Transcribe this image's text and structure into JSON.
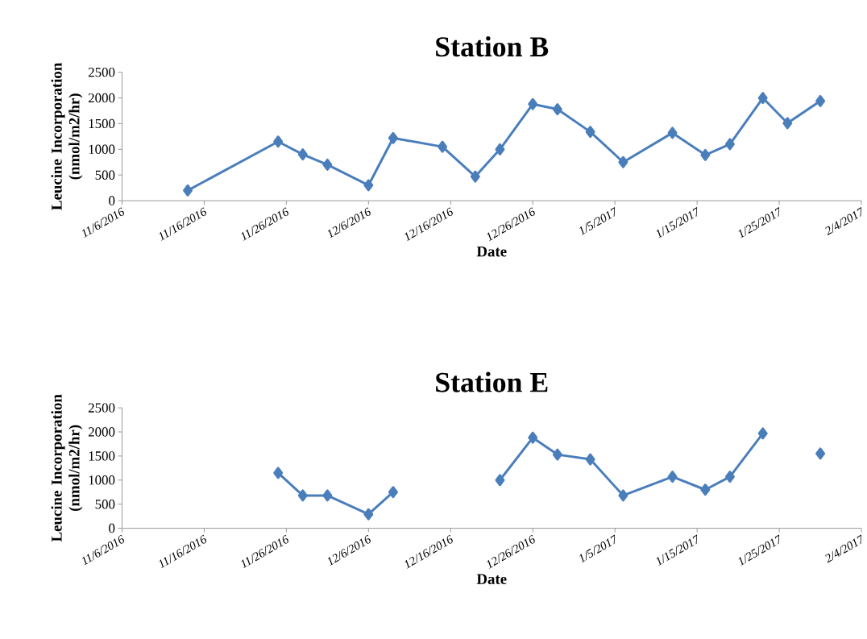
{
  "chart_data": [
    {
      "type": "line",
      "title": "Station B",
      "xlabel": "Date",
      "ylabel": "Leucine Incorporation (nmol/m2/hr)",
      "x": [
        "2016-11-14",
        "2016-11-25",
        "2016-11-28",
        "2016-12-01",
        "2016-12-06",
        "2016-12-09",
        "2016-12-15",
        "2016-12-19",
        "2016-12-22",
        "2016-12-26",
        "2016-12-29",
        "2017-01-02",
        "2017-01-06",
        "2017-01-12",
        "2017-01-16",
        "2017-01-19",
        "2017-01-23",
        "2017-01-26",
        "2017-01-30"
      ],
      "series": [
        {
          "color": "#4a7ebb",
          "values": [
            200,
            1150,
            900,
            700,
            300,
            1220,
            1050,
            470,
            1000,
            1880,
            1780,
            1340,
            750,
            1320,
            890,
            1100,
            2000,
            1510,
            1940
          ]
        }
      ],
      "xlim": [
        "2016-11-06",
        "2017-02-04"
      ],
      "xticks": [
        {
          "value": "2016-11-06",
          "label": "11/6/2016"
        },
        {
          "value": "2016-11-16",
          "label": "11/16/2016"
        },
        {
          "value": "2016-11-26",
          "label": "11/26/2016"
        },
        {
          "value": "2016-12-06",
          "label": "12/6/2016"
        },
        {
          "value": "2016-12-16",
          "label": "12/16/2016"
        },
        {
          "value": "2016-12-26",
          "label": "12/26/2016"
        },
        {
          "value": "2017-01-05",
          "label": "1/5/2017"
        },
        {
          "value": "2017-01-15",
          "label": "1/15/2017"
        },
        {
          "value": "2017-01-25",
          "label": "1/25/2017"
        },
        {
          "value": "2017-02-04",
          "label": "2/4/2017"
        }
      ],
      "ylim": [
        0,
        2500
      ],
      "yticks": [
        0,
        500,
        1000,
        1500,
        2000,
        2500
      ],
      "grid": false,
      "legend": false,
      "marker": "diamond",
      "line_style": "solid"
    },
    {
      "type": "line",
      "title": "Station E",
      "xlabel": "Date",
      "ylabel": "Leucine Incorporation (nmol/m2/hr)",
      "series": [
        {
          "color": "#4a7ebb",
          "x": [
            "2016-11-25",
            "2016-11-28",
            "2016-12-01",
            "2016-12-06",
            "2016-12-09"
          ],
          "values": [
            1150,
            680,
            680,
            290,
            750
          ]
        },
        {
          "color": "#4a7ebb",
          "x": [
            "2016-12-22",
            "2016-12-26",
            "2016-12-29",
            "2017-01-02",
            "2017-01-06",
            "2017-01-12",
            "2017-01-16",
            "2017-01-19",
            "2017-01-23"
          ],
          "values": [
            1000,
            1880,
            1530,
            1430,
            680,
            1070,
            800,
            1070,
            1970
          ]
        },
        {
          "color": "#4a7ebb",
          "x": [
            "2017-01-30"
          ],
          "values": [
            1550
          ]
        }
      ],
      "xlim": [
        "2016-11-06",
        "2017-02-04"
      ],
      "xticks": [
        {
          "value": "2016-11-06",
          "label": "11/6/2016"
        },
        {
          "value": "2016-11-16",
          "label": "11/16/2016"
        },
        {
          "value": "2016-11-26",
          "label": "11/26/2016"
        },
        {
          "value": "2016-12-06",
          "label": "12/6/2016"
        },
        {
          "value": "2016-12-16",
          "label": "12/16/2016"
        },
        {
          "value": "2016-12-26",
          "label": "12/26/2016"
        },
        {
          "value": "2017-01-05",
          "label": "1/5/2017"
        },
        {
          "value": "2017-01-15",
          "label": "1/15/2017"
        },
        {
          "value": "2017-01-25",
          "label": "1/25/2017"
        },
        {
          "value": "2017-02-04",
          "label": "2/4/2017"
        }
      ],
      "ylim": [
        0,
        2500
      ],
      "yticks": [
        0,
        500,
        1000,
        1500,
        2000,
        2500
      ],
      "grid": false,
      "legend": false,
      "marker": "diamond",
      "line_style": "solid"
    }
  ]
}
